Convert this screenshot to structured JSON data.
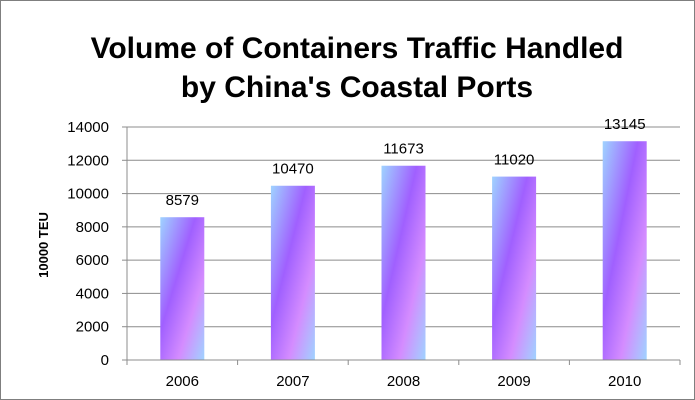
{
  "chart_data": {
    "type": "bar",
    "title_lines": [
      "Volume of Containers Traffic Handled",
      "by China's Coastal Ports"
    ],
    "xlabel": "",
    "ylabel": "10000 TEU",
    "categories": [
      "2006",
      "2007",
      "2008",
      "2009",
      "2010"
    ],
    "values": [
      8579,
      10470,
      11673,
      11020,
      13145
    ],
    "data_labels": [
      "8579",
      "10470",
      "11673",
      "11020",
      "13145"
    ],
    "ylim": [
      0,
      14000
    ],
    "yticks": [
      0,
      2000,
      4000,
      6000,
      8000,
      10000,
      12000,
      14000
    ],
    "grid": true,
    "legend": "none",
    "colors": {
      "gradient_light": "#9fd3ff",
      "gradient_mid": "#a060ff",
      "gradient_pink": "#d48cff",
      "gridline": "#8c8c8c",
      "border": "#7f7f7f"
    }
  }
}
